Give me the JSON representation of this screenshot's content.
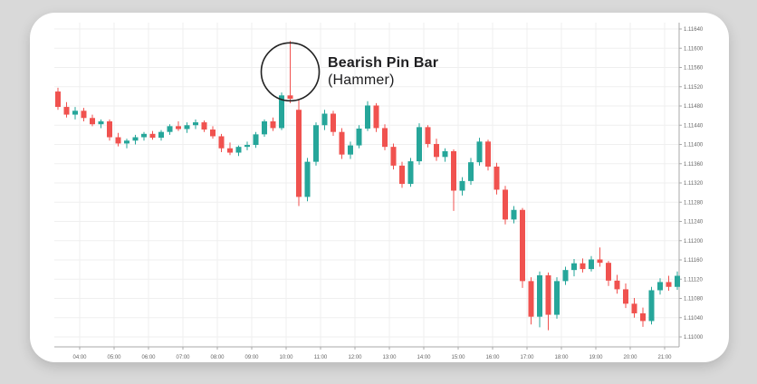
{
  "annotation": {
    "title": "Bearish Pin Bar",
    "subtitle": "(Hammer)"
  },
  "colors": {
    "background": "#d9d9d9",
    "card": "#ffffff",
    "grid": "#efefef",
    "axis": "#aaaaaa",
    "tick_label": "#666666",
    "up_candle": "#26a69a",
    "down_candle": "#f0524f",
    "annotation_circle": "#222222",
    "annotation_text": "#1d1d1f"
  },
  "chart_data": {
    "type": "candlestick",
    "title": "",
    "legend": [],
    "grid": true,
    "y_axis": {
      "side": "right",
      "min": 1.11,
      "max": 1.1164,
      "step": 0.0004,
      "labels": [
        "1.11640",
        "1.11600",
        "1.11560",
        "1.11520",
        "1.11480",
        "1.11440",
        "1.11400",
        "1.11360",
        "1.11320",
        "1.11280",
        "1.11240",
        "1.11200",
        "1.11160",
        "1.11120",
        "1.11080",
        "1.11040",
        "1.11000"
      ]
    },
    "x_axis": {
      "side": "bottom",
      "labels": [
        "04:00",
        "05:00",
        "06:00",
        "07:00",
        "08:00",
        "09:00",
        "10:00",
        "11:00",
        "12:00",
        "13:00",
        "14:00",
        "15:00",
        "16:00",
        "17:00",
        "18:00",
        "19:00",
        "20:00",
        "21:00"
      ]
    },
    "annotated_candle_index": 27,
    "candles": [
      {
        "o": 1.1151,
        "h": 1.11518,
        "l": 1.11472,
        "c": 1.11478
      },
      {
        "o": 1.11478,
        "h": 1.11488,
        "l": 1.11456,
        "c": 1.11462
      },
      {
        "o": 1.11462,
        "h": 1.11478,
        "l": 1.11452,
        "c": 1.1147
      },
      {
        "o": 1.1147,
        "h": 1.11476,
        "l": 1.11448,
        "c": 1.11455
      },
      {
        "o": 1.11455,
        "h": 1.11462,
        "l": 1.11438,
        "c": 1.11442
      },
      {
        "o": 1.11442,
        "h": 1.11452,
        "l": 1.11434,
        "c": 1.11448
      },
      {
        "o": 1.11448,
        "h": 1.11452,
        "l": 1.11408,
        "c": 1.11415
      },
      {
        "o": 1.11415,
        "h": 1.11424,
        "l": 1.11396,
        "c": 1.11402
      },
      {
        "o": 1.11402,
        "h": 1.11412,
        "l": 1.11392,
        "c": 1.11408
      },
      {
        "o": 1.11408,
        "h": 1.1142,
        "l": 1.114,
        "c": 1.11415
      },
      {
        "o": 1.11415,
        "h": 1.11426,
        "l": 1.11408,
        "c": 1.11422
      },
      {
        "o": 1.11422,
        "h": 1.11428,
        "l": 1.1141,
        "c": 1.11414
      },
      {
        "o": 1.11414,
        "h": 1.1143,
        "l": 1.11408,
        "c": 1.11426
      },
      {
        "o": 1.11426,
        "h": 1.11442,
        "l": 1.1142,
        "c": 1.11438
      },
      {
        "o": 1.11438,
        "h": 1.11448,
        "l": 1.11428,
        "c": 1.11432
      },
      {
        "o": 1.11432,
        "h": 1.11446,
        "l": 1.11424,
        "c": 1.1144
      },
      {
        "o": 1.1144,
        "h": 1.11452,
        "l": 1.11432,
        "c": 1.11446
      },
      {
        "o": 1.11446,
        "h": 1.1145,
        "l": 1.11426,
        "c": 1.11431
      },
      {
        "o": 1.11431,
        "h": 1.11438,
        "l": 1.11412,
        "c": 1.11417
      },
      {
        "o": 1.11417,
        "h": 1.11422,
        "l": 1.11384,
        "c": 1.11392
      },
      {
        "o": 1.11392,
        "h": 1.11404,
        "l": 1.11378,
        "c": 1.11383
      },
      {
        "o": 1.11383,
        "h": 1.11398,
        "l": 1.11376,
        "c": 1.11395
      },
      {
        "o": 1.11395,
        "h": 1.11406,
        "l": 1.11388,
        "c": 1.11399
      },
      {
        "o": 1.11399,
        "h": 1.11426,
        "l": 1.11393,
        "c": 1.11421
      },
      {
        "o": 1.11421,
        "h": 1.11452,
        "l": 1.11416,
        "c": 1.11448
      },
      {
        "o": 1.11448,
        "h": 1.11456,
        "l": 1.11428,
        "c": 1.11434
      },
      {
        "o": 1.11434,
        "h": 1.11508,
        "l": 1.1143,
        "c": 1.11502
      },
      {
        "o": 1.11502,
        "h": 1.11615,
        "l": 1.11486,
        "c": 1.11495
      },
      {
        "o": 1.11472,
        "h": 1.11494,
        "l": 1.11272,
        "c": 1.11291
      },
      {
        "o": 1.11291,
        "h": 1.11372,
        "l": 1.11282,
        "c": 1.11364
      },
      {
        "o": 1.11364,
        "h": 1.11446,
        "l": 1.11356,
        "c": 1.1144
      },
      {
        "o": 1.1144,
        "h": 1.11472,
        "l": 1.1143,
        "c": 1.11464
      },
      {
        "o": 1.11464,
        "h": 1.1147,
        "l": 1.11418,
        "c": 1.11426
      },
      {
        "o": 1.11426,
        "h": 1.11434,
        "l": 1.1137,
        "c": 1.11379
      },
      {
        "o": 1.11379,
        "h": 1.11406,
        "l": 1.1137,
        "c": 1.11398
      },
      {
        "o": 1.11398,
        "h": 1.1144,
        "l": 1.11392,
        "c": 1.11433
      },
      {
        "o": 1.11433,
        "h": 1.1149,
        "l": 1.11428,
        "c": 1.11481
      },
      {
        "o": 1.11481,
        "h": 1.11486,
        "l": 1.11426,
        "c": 1.11434
      },
      {
        "o": 1.11434,
        "h": 1.11442,
        "l": 1.11388,
        "c": 1.11395
      },
      {
        "o": 1.11395,
        "h": 1.11402,
        "l": 1.11348,
        "c": 1.11356
      },
      {
        "o": 1.11356,
        "h": 1.11364,
        "l": 1.1131,
        "c": 1.11318
      },
      {
        "o": 1.11318,
        "h": 1.11372,
        "l": 1.11312,
        "c": 1.11365
      },
      {
        "o": 1.11365,
        "h": 1.11444,
        "l": 1.11358,
        "c": 1.11436
      },
      {
        "o": 1.11436,
        "h": 1.1144,
        "l": 1.11394,
        "c": 1.11401
      },
      {
        "o": 1.11401,
        "h": 1.11412,
        "l": 1.11366,
        "c": 1.11374
      },
      {
        "o": 1.11374,
        "h": 1.11392,
        "l": 1.11364,
        "c": 1.11386
      },
      {
        "o": 1.11386,
        "h": 1.1139,
        "l": 1.11262,
        "c": 1.11304
      },
      {
        "o": 1.11304,
        "h": 1.11332,
        "l": 1.11294,
        "c": 1.11324
      },
      {
        "o": 1.11324,
        "h": 1.11372,
        "l": 1.11316,
        "c": 1.11363
      },
      {
        "o": 1.11363,
        "h": 1.11414,
        "l": 1.11356,
        "c": 1.11406
      },
      {
        "o": 1.11406,
        "h": 1.1141,
        "l": 1.11346,
        "c": 1.11354
      },
      {
        "o": 1.11354,
        "h": 1.11362,
        "l": 1.11296,
        "c": 1.11306
      },
      {
        "o": 1.11306,
        "h": 1.11314,
        "l": 1.11234,
        "c": 1.11244
      },
      {
        "o": 1.11244,
        "h": 1.11272,
        "l": 1.11236,
        "c": 1.11264
      },
      {
        "o": 1.11264,
        "h": 1.11268,
        "l": 1.11102,
        "c": 1.11116
      },
      {
        "o": 1.11116,
        "h": 1.11124,
        "l": 1.11026,
        "c": 1.11042
      },
      {
        "o": 1.11042,
        "h": 1.11136,
        "l": 1.1102,
        "c": 1.11128
      },
      {
        "o": 1.11128,
        "h": 1.11134,
        "l": 1.11014,
        "c": 1.11046
      },
      {
        "o": 1.11046,
        "h": 1.11124,
        "l": 1.11038,
        "c": 1.11116
      },
      {
        "o": 1.11116,
        "h": 1.11146,
        "l": 1.11108,
        "c": 1.11139
      },
      {
        "o": 1.11139,
        "h": 1.11162,
        "l": 1.11126,
        "c": 1.11153
      },
      {
        "o": 1.11153,
        "h": 1.11163,
        "l": 1.11134,
        "c": 1.11141
      },
      {
        "o": 1.11141,
        "h": 1.11168,
        "l": 1.11136,
        "c": 1.11161
      },
      {
        "o": 1.11161,
        "h": 1.11186,
        "l": 1.11146,
        "c": 1.11154
      },
      {
        "o": 1.11154,
        "h": 1.11158,
        "l": 1.11106,
        "c": 1.11117
      },
      {
        "o": 1.11117,
        "h": 1.11129,
        "l": 1.1109,
        "c": 1.11099
      },
      {
        "o": 1.11099,
        "h": 1.11111,
        "l": 1.1106,
        "c": 1.11069
      },
      {
        "o": 1.11069,
        "h": 1.11081,
        "l": 1.1104,
        "c": 1.11049
      },
      {
        "o": 1.11049,
        "h": 1.11061,
        "l": 1.11021,
        "c": 1.11033
      },
      {
        "o": 1.11033,
        "h": 1.11104,
        "l": 1.11026,
        "c": 1.11097
      },
      {
        "o": 1.11097,
        "h": 1.11122,
        "l": 1.11088,
        "c": 1.11114
      },
      {
        "o": 1.11114,
        "h": 1.11127,
        "l": 1.11096,
        "c": 1.11104
      },
      {
        "o": 1.11104,
        "h": 1.11136,
        "l": 1.11098,
        "c": 1.11127
      }
    ]
  }
}
